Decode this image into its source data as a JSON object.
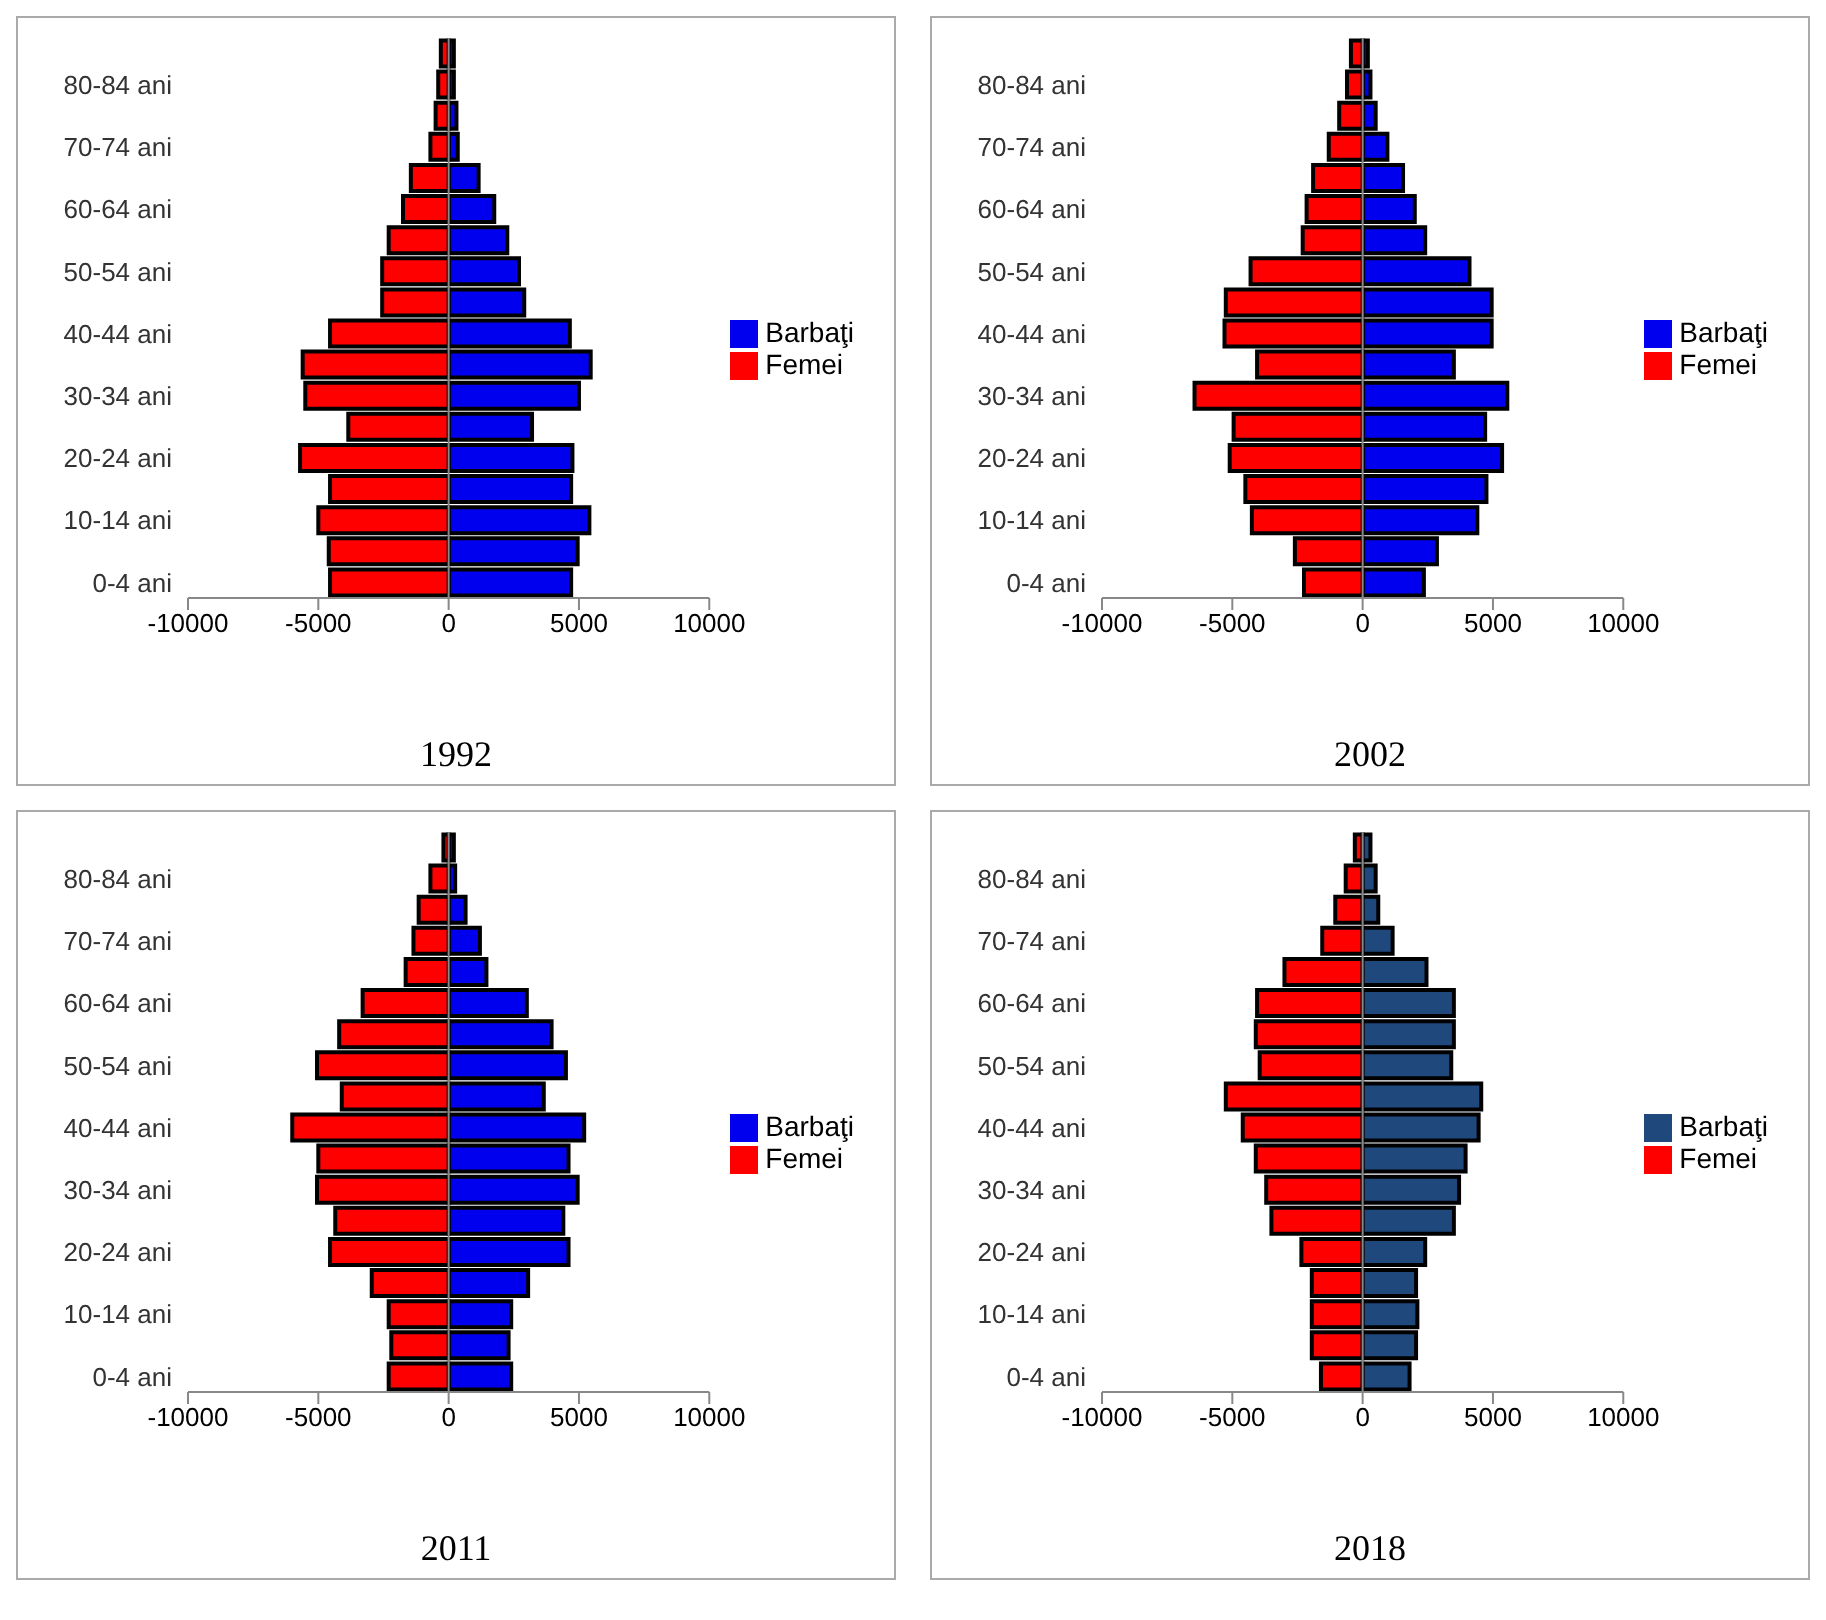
{
  "chart_data": [
    {
      "type": "bar",
      "title": "1992",
      "orientation": "horizontal",
      "stacked": true,
      "legend": "right",
      "categories": [
        null,
        "80-84 ani",
        null,
        "70-74 ani",
        null,
        "60-64 ani",
        null,
        "50-54 ani",
        null,
        "40-44 ani",
        null,
        "30-34 ani",
        null,
        "20-24 ani",
        null,
        "10-14 ani",
        null,
        "0-4 ani"
      ],
      "series": [
        {
          "name": "Barbaţi",
          "color": "#0000ee",
          "values": [
            200,
            200,
            300,
            350,
            1150,
            1750,
            2250,
            2700,
            2900,
            4650,
            5450,
            5000,
            3200,
            4750,
            4700,
            5400,
            4950,
            4700
          ]
        },
        {
          "name": "Femei",
          "color": "#ff0000",
          "values": [
            -300,
            -400,
            -500,
            -700,
            -1450,
            -1750,
            -2300,
            -2550,
            -2550,
            -4550,
            -5600,
            -5500,
            -3850,
            -5700,
            -4550,
            -5000,
            -4600,
            -4550
          ]
        }
      ],
      "xlim": [
        -10000,
        10000
      ],
      "xticks": [
        -10000,
        -5000,
        0,
        5000,
        10000
      ]
    },
    {
      "type": "bar",
      "title": "2002",
      "orientation": "horizontal",
      "stacked": true,
      "legend": "right",
      "categories": [
        null,
        "80-84 ani",
        null,
        "70-74 ani",
        null,
        "60-64 ani",
        null,
        "50-54 ani",
        null,
        "40-44 ani",
        null,
        "30-34 ani",
        null,
        "20-24 ani",
        null,
        "10-14 ani",
        null,
        "0-4 ani"
      ],
      "series": [
        {
          "name": "Barbaţi",
          "color": "#0000ee",
          "values": [
            200,
            300,
            500,
            950,
            1550,
            2000,
            2400,
            4100,
            4950,
            4950,
            3500,
            5550,
            4700,
            5350,
            4750,
            4400,
            2850,
            2350
          ]
        },
        {
          "name": "Femei",
          "color": "#ff0000",
          "values": [
            -450,
            -600,
            -900,
            -1300,
            -1900,
            -2150,
            -2300,
            -4300,
            -5250,
            -5300,
            -4050,
            -6450,
            -4950,
            -5100,
            -4500,
            -4250,
            -2600,
            -2250
          ]
        }
      ],
      "xlim": [
        -10000,
        10000
      ],
      "xticks": [
        -10000,
        -5000,
        0,
        5000,
        10000
      ]
    },
    {
      "type": "bar",
      "title": "2011",
      "orientation": "horizontal",
      "stacked": true,
      "legend": "right",
      "categories": [
        null,
        "80-84 ani",
        null,
        "70-74 ani",
        null,
        "60-64 ani",
        null,
        "50-54 ani",
        null,
        "40-44 ani",
        null,
        "30-34 ani",
        null,
        "20-24 ani",
        null,
        "10-14 ani",
        null,
        "0-4 ani"
      ],
      "series": [
        {
          "name": "Barbaţi",
          "color": "#0000ee",
          "values": [
            200,
            250,
            650,
            1200,
            1450,
            3000,
            3950,
            4500,
            3650,
            5200,
            4600,
            4950,
            4400,
            4600,
            3050,
            2400,
            2300,
            2400
          ]
        },
        {
          "name": "Femei",
          "color": "#ff0000",
          "values": [
            -200,
            -700,
            -1150,
            -1350,
            -1650,
            -3300,
            -4200,
            -5050,
            -4100,
            -6000,
            -5000,
            -5050,
            -4350,
            -4550,
            -2950,
            -2300,
            -2200,
            -2300
          ]
        }
      ],
      "xlim": [
        -10000,
        10000
      ],
      "xticks": [
        -10000,
        -5000,
        0,
        5000,
        10000
      ]
    },
    {
      "type": "bar",
      "title": "2018",
      "orientation": "horizontal",
      "stacked": true,
      "legend": "right",
      "categories": [
        null,
        "80-84 ani",
        null,
        "70-74 ani",
        null,
        "60-64 ani",
        null,
        "50-54 ani",
        null,
        "40-44 ani",
        null,
        "30-34 ani",
        null,
        "20-24 ani",
        null,
        "10-14 ani",
        null,
        "0-4 ani"
      ],
      "series": [
        {
          "name": "Femei",
          "color": "#ff0000",
          "values": [
            -300,
            -650,
            -1050,
            -1550,
            -3000,
            -4050,
            -4100,
            -3950,
            -5250,
            -4600,
            -4100,
            -3700,
            -3500,
            -2350,
            -1950,
            -1950,
            -1950,
            -1600
          ]
        },
        {
          "name": "Barbaţi",
          "color": "#1f497d",
          "values": [
            300,
            500,
            600,
            1150,
            2450,
            3500,
            3500,
            3400,
            4550,
            4450,
            3950,
            3700,
            3500,
            2400,
            2050,
            2100,
            2050,
            1800
          ]
        }
      ],
      "xlim": [
        -10000,
        10000
      ],
      "xticks": [
        -10000,
        -5000,
        0,
        5000,
        10000
      ]
    }
  ]
}
